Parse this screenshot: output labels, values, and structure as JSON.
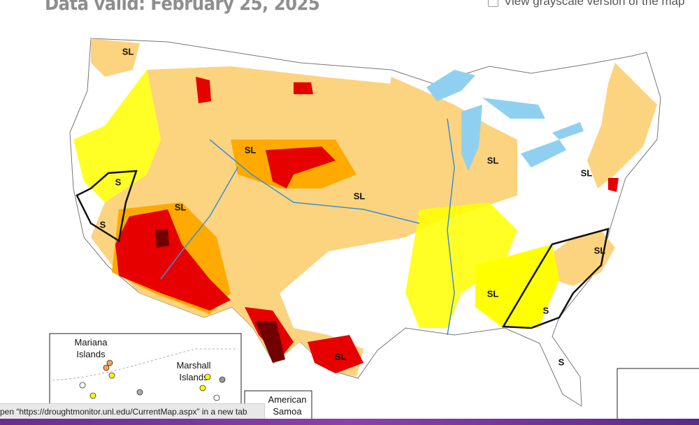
{
  "header": {
    "date": "Data valid: February 25, 2025",
    "grayscale_toggle": "View grayscale version of the map"
  },
  "map": {
    "labels": [
      "SL",
      "SL",
      "SL",
      "SL",
      "SL",
      "SL",
      "SL",
      "SL",
      "SL",
      "S",
      "S",
      "S",
      "S"
    ]
  },
  "insets": [
    [
      "Mariana",
      "Islands"
    ],
    [
      "Marshall",
      "Islands"
    ],
    [
      "American",
      "Samoa"
    ]
  ],
  "status_bar": "pen “https://droughtmonitor.unl.edu/CurrentMap.aspx” in a new tab"
}
